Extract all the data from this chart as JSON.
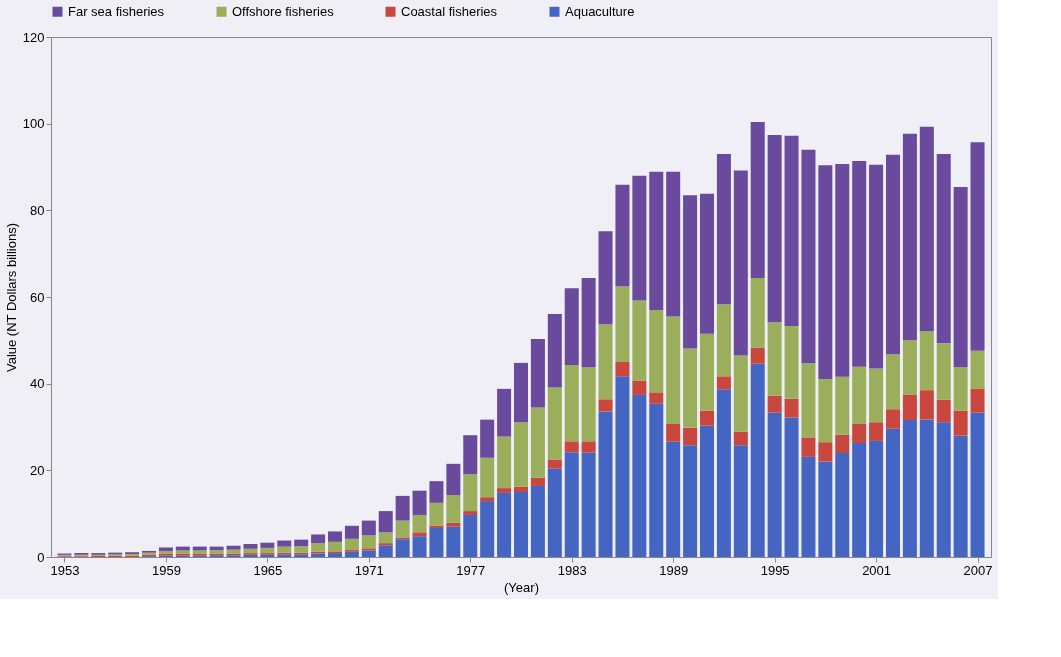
{
  "chart_data": {
    "type": "bar",
    "stacked": true,
    "xlabel": "(Year)",
    "ylabel": "Value (NT Dollars billions)",
    "x": [
      1953,
      1954,
      1955,
      1956,
      1957,
      1958,
      1959,
      1960,
      1961,
      1962,
      1963,
      1964,
      1965,
      1966,
      1967,
      1968,
      1969,
      1970,
      1971,
      1972,
      1973,
      1974,
      1975,
      1976,
      1977,
      1978,
      1979,
      1980,
      1981,
      1982,
      1983,
      1984,
      1985,
      1986,
      1987,
      1988,
      1989,
      1990,
      1991,
      1992,
      1993,
      1994,
      1995,
      1996,
      1997,
      1998,
      1999,
      2000,
      2001,
      2002,
      2003,
      2004,
      2005,
      2006,
      2007
    ],
    "xlim": [
      1952.5,
      2007.5
    ],
    "xticks": [
      1953,
      1959,
      1965,
      1971,
      1977,
      1983,
      1989,
      1995,
      2001,
      2007
    ],
    "ylim": [
      0,
      120
    ],
    "yticks": [
      0,
      20,
      40,
      60,
      80,
      100,
      120
    ],
    "grid": false,
    "legend": "top",
    "series": [
      {
        "name": "Aquaculture",
        "color": "#4466c2",
        "values": [
          0.1,
          0.1,
          null,
          null,
          null,
          0.2,
          0.3,
          0.3,
          0.3,
          0.4,
          0.4,
          0.5,
          0.5,
          0.6,
          0.6,
          0.8,
          0.9,
          1.2,
          1.5,
          2.7,
          4.1,
          4.8,
          6.7,
          7.0,
          9.7,
          12.9,
          14.8,
          15.0,
          16.4,
          20.4,
          24.2,
          24.1,
          33.6,
          41.7,
          37.4,
          35.4,
          26.6,
          25.8,
          30.3,
          38.7,
          25.8,
          44.6,
          33.3,
          32.2,
          23.1,
          22.0,
          24.0,
          26.3,
          26.8,
          29.6,
          31.6,
          31.7,
          31.1,
          28.0,
          33.3
        ]
      },
      {
        "name": "Coastal fisheries",
        "color": "#c8473f",
        "values": [
          0.2,
          0.2,
          0.3,
          0.3,
          0.3,
          0.3,
          0.4,
          0.4,
          0.4,
          0.4,
          0.4,
          0.4,
          0.4,
          0.4,
          0.4,
          0.4,
          0.4,
          0.4,
          0.5,
          0.5,
          0.4,
          0.9,
          0.5,
          0.9,
          0.9,
          0.9,
          1.1,
          1.2,
          1.9,
          2.1,
          2.5,
          2.6,
          2.8,
          3.3,
          3.3,
          2.6,
          4.1,
          4.0,
          3.5,
          3.0,
          3.1,
          3.7,
          3.9,
          4.3,
          4.5,
          4.5,
          4.2,
          4.4,
          4.3,
          4.5,
          5.9,
          6.8,
          5.2,
          5.8,
          5.6
        ]
      },
      {
        "name": "Offshore fisheries",
        "color": "#9aae5c",
        "values": [
          0.2,
          0.2,
          0.2,
          0.3,
          0.4,
          0.5,
          0.7,
          0.8,
          0.8,
          0.8,
          0.9,
          1.0,
          1.2,
          1.4,
          1.5,
          2.0,
          2.2,
          2.6,
          3.0,
          2.5,
          3.9,
          4.0,
          5.3,
          6.4,
          8.5,
          9.1,
          11.9,
          14.9,
          16.2,
          16.6,
          17.6,
          17.1,
          17.3,
          17.5,
          18.5,
          19.0,
          24.8,
          18.3,
          17.7,
          16.6,
          17.6,
          16.1,
          17.0,
          16.8,
          17.1,
          14.6,
          13.4,
          13.2,
          12.4,
          12.7,
          12.6,
          13.6,
          13.0,
          10.0,
          8.7
        ]
      },
      {
        "name": "Far sea fisheries",
        "color": "#6a4a9c",
        "values": [
          0.3,
          0.4,
          0.4,
          0.4,
          0.4,
          0.4,
          0.8,
          0.9,
          0.9,
          0.8,
          0.9,
          1.1,
          1.2,
          1.4,
          1.5,
          2.0,
          2.4,
          3.0,
          3.4,
          4.9,
          5.7,
          5.6,
          5.0,
          7.2,
          9.0,
          8.8,
          11.0,
          13.7,
          15.8,
          17.0,
          17.7,
          20.6,
          21.5,
          23.4,
          28.8,
          31.9,
          33.4,
          35.4,
          32.3,
          34.7,
          42.7,
          36.0,
          43.2,
          43.9,
          49.3,
          49.3,
          49.1,
          47.5,
          47.0,
          46.0,
          47.6,
          47.2,
          43.7,
          41.6,
          48.1
        ]
      }
    ]
  }
}
